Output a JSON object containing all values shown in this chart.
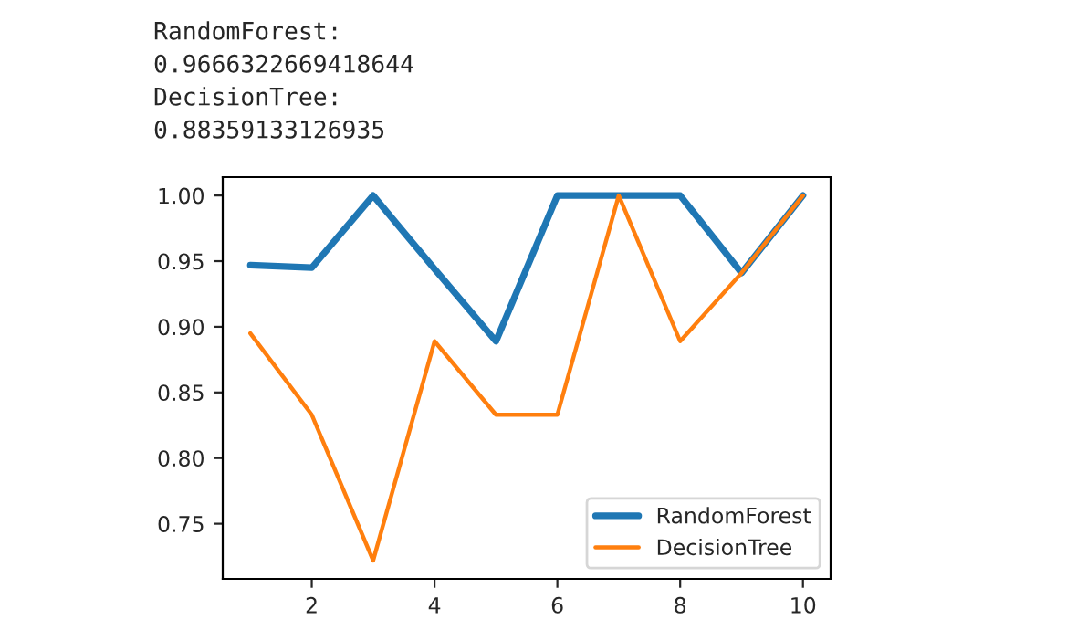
{
  "chart_data": {
    "type": "line",
    "annotations": [
      "RandomForest:",
      "0.9666322669418644",
      "DecisionTree:",
      "0.88359133126935"
    ],
    "x": [
      1,
      2,
      3,
      4,
      5,
      6,
      7,
      8,
      9,
      10
    ],
    "series": [
      {
        "name": "RandomForest",
        "color": "#1f77b4",
        "values": [
          0.947,
          0.945,
          1.0,
          0.944,
          0.889,
          1.0,
          1.0,
          1.0,
          0.941,
          1.0
        ]
      },
      {
        "name": "DecisionTree",
        "color": "#ff7f0e",
        "values": [
          0.895,
          0.833,
          0.722,
          0.889,
          0.833,
          0.833,
          1.0,
          0.889,
          0.941,
          1.0
        ]
      }
    ],
    "xlim": [
      0.55,
      10.45
    ],
    "ylim": [
      0.708,
      1.014
    ],
    "xticks": [
      2,
      4,
      6,
      8,
      10
    ],
    "yticks": [
      {
        "value": 0.75,
        "label": "0.75"
      },
      {
        "value": 0.8,
        "label": "0.80"
      },
      {
        "value": 0.85,
        "label": "0.85"
      },
      {
        "value": 0.9,
        "label": "0.90"
      },
      {
        "value": 0.95,
        "label": "0.95"
      },
      {
        "value": 1.0,
        "label": "1.00"
      }
    ],
    "legend": "lower right",
    "grid": false
  }
}
